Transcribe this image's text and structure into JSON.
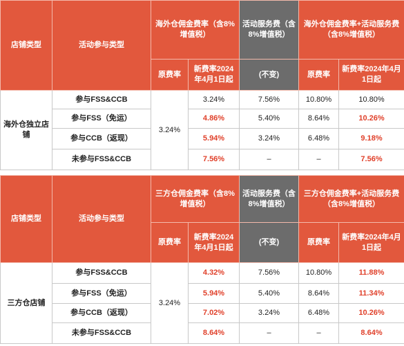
{
  "tables": [
    {
      "header": {
        "store_type": "店铺类型",
        "activity_type": "活动参与类型",
        "commission": "海外仓佣金费率（含8%增值税）",
        "service": "活动服务费（含8%增值税）",
        "combined": "海外仓佣金费率+活动服务费（含8%增值税）",
        "original_rate": "原费率",
        "new_rate": "新费率2024年4月1日起",
        "unchanged": "(不变)",
        "combined_original": "原费率",
        "combined_new": "新费率2024年4月1日起"
      },
      "store": "海外仓独立店铺",
      "base_rate": "3.24%",
      "rows": [
        {
          "activity": "参与FSS&CCB",
          "new_rate": "3.24%",
          "service_fee": "7.56%",
          "combined_original": "10.80%",
          "combined_new": "10.80%"
        },
        {
          "activity": "参与FSS（免运）",
          "new_rate": "4.86%",
          "service_fee": "5.40%",
          "combined_original": "8.64%",
          "combined_new": "10.26%"
        },
        {
          "activity": "参与CCB（返现）",
          "new_rate": "5.94%",
          "service_fee": "3.24%",
          "combined_original": "6.48%",
          "combined_new": "9.18%"
        },
        {
          "activity": "未参与FSS&CCB",
          "new_rate": "7.56%",
          "service_fee": "–",
          "combined_original": "–",
          "combined_new": "7.56%"
        }
      ]
    },
    {
      "header": {
        "store_type": "店铺类型",
        "activity_type": "活动参与类型",
        "commission": "三方仓佣金费率（含8%增值税）",
        "service": "活动服务费（含8%增值税）",
        "combined": "三方仓佣金费率+活动服务费（含8%增值税）",
        "original_rate": "原费率",
        "new_rate": "新费率2024年4月1日起",
        "unchanged": "(不变)",
        "combined_original": "原费率",
        "combined_new": "新费率2024年4月1日起"
      },
      "store": "三方仓店铺",
      "base_rate": "3.24%",
      "rows": [
        {
          "activity": "参与FSS&CCB",
          "new_rate": "4.32%",
          "service_fee": "7.56%",
          "combined_original": "10.80%",
          "combined_new": "11.88%"
        },
        {
          "activity": "参与FSS（免运）",
          "new_rate": "5.94%",
          "service_fee": "5.40%",
          "combined_original": "8.64%",
          "combined_new": "11.34%"
        },
        {
          "activity": "参与CCB（返现）",
          "new_rate": "7.02%",
          "service_fee": "3.24%",
          "combined_original": "6.48%",
          "combined_new": "10.26%"
        },
        {
          "activity": "未参与FSS&CCB",
          "new_rate": "8.64%",
          "service_fee": "–",
          "combined_original": "–",
          "combined_new": "8.64%"
        }
      ]
    }
  ]
}
